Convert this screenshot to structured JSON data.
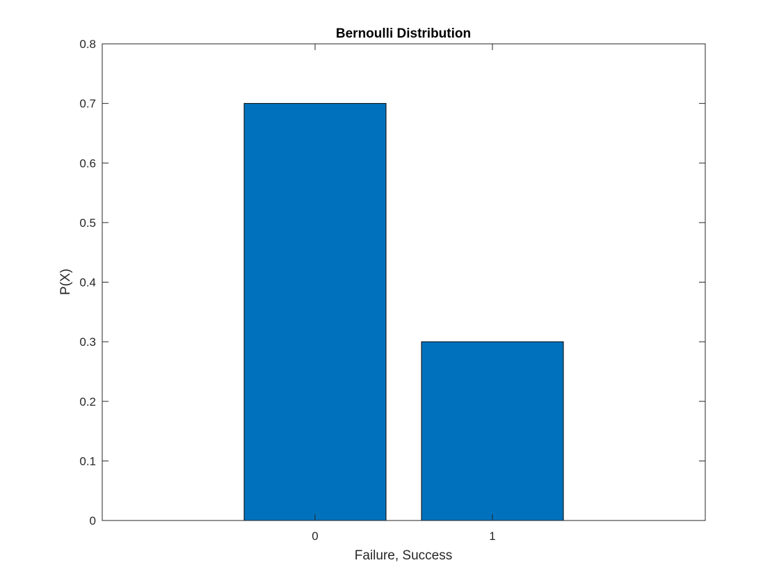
{
  "chart_data": {
    "type": "bar",
    "title": "Bernoulli Distribution",
    "xlabel": "Failure, Success",
    "ylabel": "P(X)",
    "categories": [
      "0",
      "1"
    ],
    "x": [
      0,
      1
    ],
    "values": [
      0.7,
      0.3
    ],
    "xlim": [
      -1.2,
      2.2
    ],
    "ylim": [
      0,
      0.8
    ],
    "yticks": [
      0,
      0.1,
      0.2,
      0.3,
      0.4,
      0.5,
      0.6,
      0.7,
      0.8
    ],
    "ytick_labels": [
      "0",
      "0.1",
      "0.2",
      "0.3",
      "0.4",
      "0.5",
      "0.6",
      "0.7",
      "0.8"
    ],
    "bar_color": "#0072BD",
    "edge_color": "#000000",
    "grid": false,
    "legend": "none"
  }
}
